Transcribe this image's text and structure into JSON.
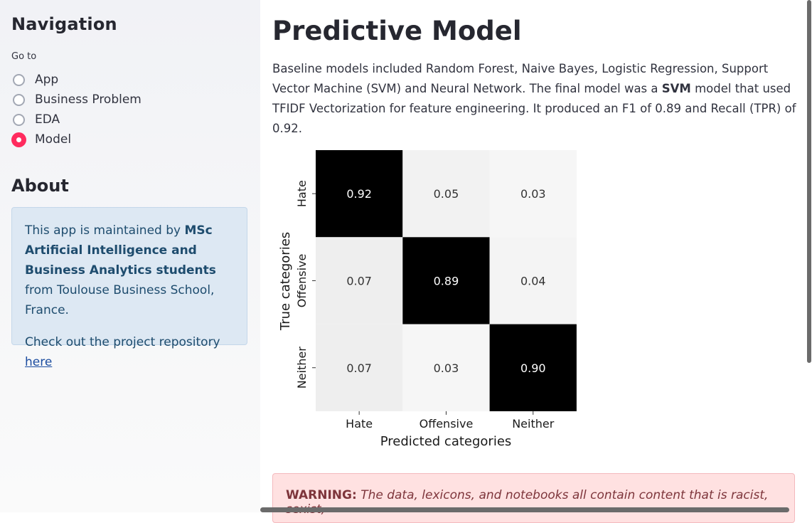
{
  "sidebar": {
    "title": "Navigation",
    "goto_label": "Go to",
    "options": [
      {
        "label": "App",
        "selected": false
      },
      {
        "label": "Business Problem",
        "selected": false
      },
      {
        "label": "EDA",
        "selected": false
      },
      {
        "label": "Model",
        "selected": true
      }
    ],
    "about_title": "About",
    "about": {
      "text_before": "This app is maintained by ",
      "bold": "MSc Artificial Intelligence and Business Analytics students",
      "text_after": " from Toulouse Business School, France.",
      "repo_text": "Check out the project repository ",
      "repo_link": "here"
    }
  },
  "main": {
    "title": "Predictive Model",
    "intro_1": "Baseline models included Random Forest, Naive Bayes, Logistic Regression, Support Vector Machine (SVM) and Neural Network. The final model was a ",
    "intro_bold": "SVM",
    "intro_2": " model that used TFIDF Vectorization for feature engineering. It produced an F1 of 0.89 and Recall (TPR) of 0.92.",
    "warning_label": "WARNING:",
    "warning_text": "The data, lexicons, and notebooks all contain content that is racist, sexist,"
  },
  "chart_data": {
    "type": "heatmap",
    "x_categories": [
      "Hate",
      "Offensive",
      "Neither"
    ],
    "y_categories": [
      "Hate",
      "Offensive",
      "Neither"
    ],
    "values": [
      [
        0.92,
        0.05,
        0.03
      ],
      [
        0.07,
        0.89,
        0.04
      ],
      [
        0.07,
        0.03,
        0.9
      ]
    ],
    "labels": [
      [
        "0.92",
        "0.05",
        "0.03"
      ],
      [
        "0.07",
        "0.89",
        "0.04"
      ],
      [
        "0.07",
        "0.03",
        "0.90"
      ]
    ],
    "xlabel": "Predicted categories",
    "ylabel": "True categories",
    "colormap": "Greys"
  }
}
